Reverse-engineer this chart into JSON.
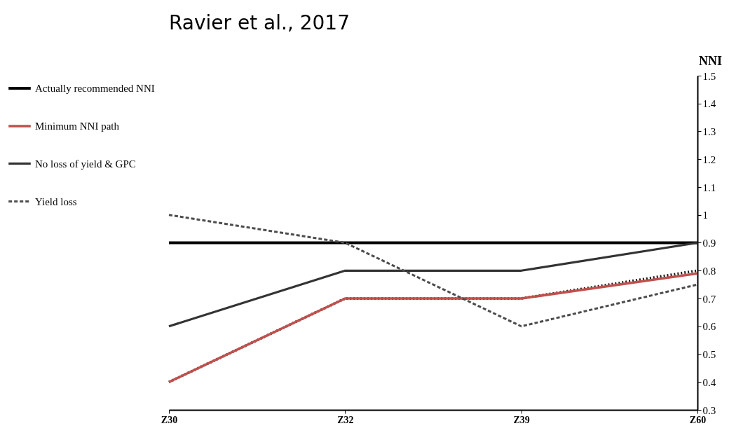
{
  "chart_data": {
    "type": "line",
    "title": "Ravier et al., 2017",
    "ylabel": "NNI",
    "categories": [
      "Z30",
      "Z32",
      "Z39",
      "Z60"
    ],
    "series": [
      {
        "name": "Actually recommended NNI",
        "color": "#000000",
        "line_style": "solid",
        "values": [
          0.9,
          0.9,
          0.9,
          0.9
        ]
      },
      {
        "color": "#1a1a1a",
        "line_style": "dotted",
        "values": [
          0.4,
          0.7,
          0.7,
          0.8
        ]
      },
      {
        "name": "Minimum NNI path",
        "color": "#c0504d",
        "line_style": "solid",
        "values": [
          0.4,
          0.7,
          0.7,
          0.79
        ]
      },
      {
        "name": "No loss of yield & GPC",
        "color": "#333333",
        "line_style": "solid",
        "values": [
          0.6,
          0.8,
          0.8,
          0.9
        ]
      },
      {
        "name": "Yield loss",
        "color": "#4d4d4d",
        "line_style": "dashed",
        "values": [
          1.0,
          0.9,
          0.6,
          0.75
        ]
      }
    ],
    "ylim": [
      0.3,
      1.5
    ],
    "yticks": [
      0.3,
      0.4,
      0.5,
      0.6,
      0.7,
      0.8,
      0.9,
      1,
      1.1,
      1.2,
      1.3,
      1.4,
      1.5
    ],
    "grid": false,
    "legend": "left",
    "marker": "none"
  }
}
